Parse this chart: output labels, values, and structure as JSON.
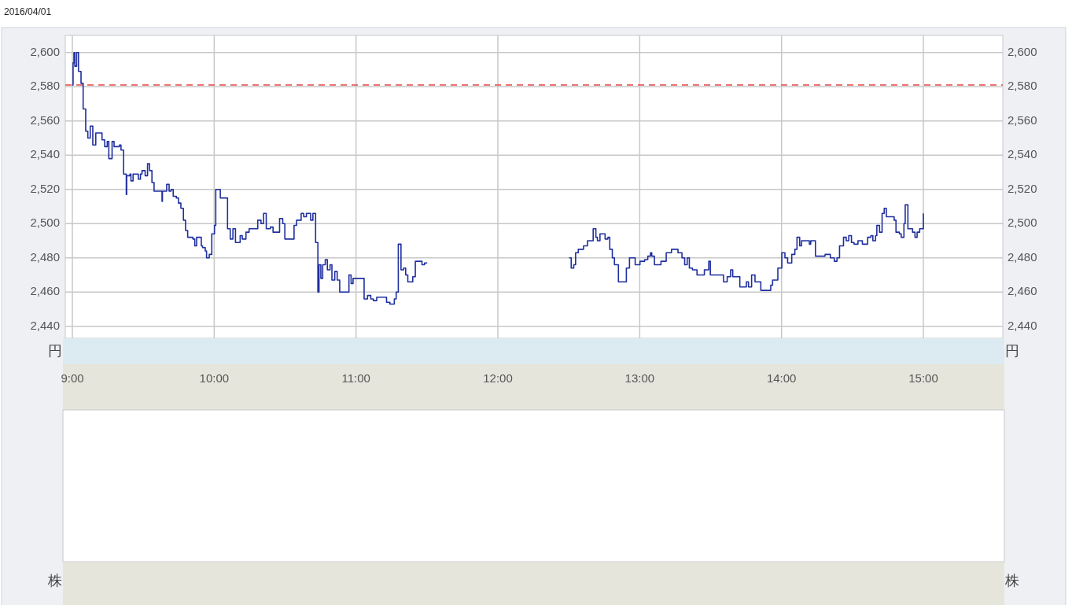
{
  "chart_data": {
    "type": "step",
    "title": "2016/04/01",
    "ylabel": "円",
    "y2label": "円",
    "annotations": [
      "株",
      "株"
    ],
    "line_style": "solid",
    "marker": "none",
    "grid": true,
    "series": [
      {
        "color": "#1f2f9f",
        "x": [
          9.0,
          9.005,
          9.011,
          9.017,
          9.03,
          9.043,
          9.061,
          9.076,
          9.094,
          9.109,
          9.126,
          9.144,
          9.165,
          9.209,
          9.228,
          9.246,
          9.257,
          9.28,
          9.294,
          9.332,
          9.343,
          9.361,
          9.38,
          9.383,
          9.406,
          9.413,
          9.428,
          9.465,
          9.48,
          9.491,
          9.513,
          9.53,
          9.544,
          9.561,
          9.576,
          9.632,
          9.635,
          9.665,
          9.682,
          9.696,
          9.711,
          9.733,
          9.748,
          9.765,
          9.783,
          9.798,
          9.813,
          9.85,
          9.863,
          9.876,
          9.909,
          9.918,
          9.937,
          9.946,
          9.965,
          9.983,
          10.002,
          10.011,
          10.043,
          10.094,
          10.113,
          10.132,
          10.15,
          10.183,
          10.198,
          10.224,
          10.246,
          10.261,
          10.307,
          10.33,
          10.348,
          10.367,
          10.396,
          10.415,
          10.461,
          10.483,
          10.498,
          10.563,
          10.581,
          10.613,
          10.631,
          10.65,
          10.68,
          10.696,
          10.715,
          10.731,
          10.739,
          10.752,
          10.765,
          10.783,
          10.798,
          10.817,
          10.83,
          10.85,
          10.867,
          10.885,
          10.95,
          10.965,
          10.979,
          11.057,
          11.081,
          11.104,
          11.122,
          11.146,
          11.215,
          11.239,
          11.27,
          11.283,
          11.298,
          11.317,
          11.335,
          11.35,
          11.365,
          11.4,
          11.418,
          11.465,
          11.483,
          11.502
        ],
        "values": [
          2581,
          2594,
          2600,
          2592,
          2600,
          2589,
          2582,
          2567,
          2554,
          2550,
          2557,
          2546,
          2553,
          2549,
          2545,
          2548,
          2538,
          2548,
          2545,
          2546,
          2543,
          2529,
          2517,
          2528,
          2529,
          2525,
          2529,
          2526,
          2529,
          2531,
          2528,
          2535,
          2531,
          2524,
          2519,
          2513,
          2519,
          2523,
          2519,
          2520,
          2516,
          2515,
          2512,
          2509,
          2502,
          2496,
          2492,
          2491,
          2487,
          2492,
          2487,
          2486,
          2484,
          2480,
          2482,
          2494,
          2499,
          2520,
          2515,
          2497,
          2491,
          2497,
          2489,
          2493,
          2491,
          2495,
          2497,
          2497,
          2502,
          2500,
          2506,
          2497,
          2498,
          2495,
          2503,
          2500,
          2491,
          2499,
          2502,
          2506,
          2504,
          2506,
          2502,
          2506,
          2489,
          2460,
          2476,
          2468,
          2476,
          2479,
          2473,
          2476,
          2467,
          2472,
          2467,
          2460,
          2470,
          2465,
          2468,
          2456,
          2458,
          2456,
          2455,
          2457,
          2454,
          2453,
          2456,
          2460,
          2488,
          2473,
          2474,
          2470,
          2466,
          2469,
          2478,
          2476,
          2477,
          2477
        ]
      },
      {
        "color": "#1f2f9f",
        "x": [
          12.502,
          12.517,
          12.535,
          12.548,
          12.567,
          12.604,
          12.632,
          12.672,
          12.691,
          12.702,
          12.72,
          12.756,
          12.776,
          12.789,
          12.807,
          12.822,
          12.85,
          12.906,
          12.928,
          12.968,
          13.002,
          13.035,
          13.057,
          13.076,
          13.085,
          13.104,
          13.15,
          13.187,
          13.224,
          13.27,
          13.298,
          13.317,
          13.335,
          13.35,
          13.372,
          13.404,
          13.456,
          13.487,
          13.498,
          13.591,
          13.617,
          13.641,
          13.656,
          13.706,
          13.752,
          13.767,
          13.789,
          13.813,
          13.854,
          13.924,
          13.937,
          13.974,
          14.002,
          14.024,
          14.043,
          14.072,
          14.094,
          14.109,
          14.128,
          14.141,
          14.196,
          14.206,
          14.239,
          14.307,
          14.344,
          14.372,
          14.391,
          14.409,
          14.437,
          14.456,
          14.474,
          14.493,
          14.511,
          14.539,
          14.57,
          14.607,
          14.63,
          14.644,
          14.663,
          14.672,
          14.691,
          14.709,
          14.724,
          14.739,
          14.794,
          14.807,
          14.831,
          14.844,
          14.863,
          14.872,
          14.891,
          14.924,
          14.941,
          14.956,
          14.974,
          15.0
        ],
        "values": [
          2480,
          2474,
          2476,
          2483,
          2485,
          2487,
          2490,
          2497,
          2492,
          2490,
          2494,
          2491,
          2492,
          2485,
          2480,
          2476,
          2466,
          2474,
          2480,
          2476,
          2478,
          2479,
          2481,
          2483,
          2481,
          2476,
          2478,
          2483,
          2485,
          2483,
          2480,
          2476,
          2480,
          2474,
          2473,
          2470,
          2473,
          2478,
          2470,
          2466,
          2469,
          2473,
          2469,
          2463,
          2466,
          2463,
          2470,
          2466,
          2461,
          2464,
          2467,
          2474,
          2483,
          2480,
          2477,
          2482,
          2485,
          2492,
          2487,
          2490,
          2488,
          2490,
          2481,
          2482,
          2480,
          2478,
          2480,
          2487,
          2492,
          2490,
          2493,
          2489,
          2488,
          2490,
          2488,
          2492,
          2493,
          2490,
          2493,
          2499,
          2495,
          2506,
          2509,
          2504,
          2502,
          2495,
          2494,
          2492,
          2500,
          2511,
          2497,
          2495,
          2492,
          2495,
          2497,
          2506
        ]
      }
    ],
    "xlim": [
      8.95,
      15.56
    ],
    "ylim": [
      2433,
      2610
    ],
    "y2lim": [
      2433,
      2610
    ],
    "xticks": [
      {
        "value": 9,
        "label": "9:00"
      },
      {
        "value": 10,
        "label": "10:00"
      },
      {
        "value": 11,
        "label": "11:00"
      },
      {
        "value": 12,
        "label": "12:00"
      },
      {
        "value": 13,
        "label": "13:00"
      },
      {
        "value": 14,
        "label": "14:00"
      },
      {
        "value": 15,
        "label": "15:00"
      }
    ],
    "yticks": [
      {
        "value": 2440,
        "label": "2,440"
      },
      {
        "value": 2460,
        "label": "2,460"
      },
      {
        "value": 2480,
        "label": "2,480"
      },
      {
        "value": 2500,
        "label": "2,500"
      },
      {
        "value": 2520,
        "label": "2,520"
      },
      {
        "value": 2540,
        "label": "2,540"
      },
      {
        "value": 2560,
        "label": "2,560"
      },
      {
        "value": 2580,
        "label": "2,580"
      },
      {
        "value": 2600,
        "label": "2,600"
      }
    ],
    "y2ticks": [
      {
        "value": 2440,
        "label": "2,440"
      },
      {
        "value": 2460,
        "label": "2,460"
      },
      {
        "value": 2480,
        "label": "2,480"
      },
      {
        "value": 2500,
        "label": "2,500"
      },
      {
        "value": 2520,
        "label": "2,520"
      },
      {
        "value": 2540,
        "label": "2,540"
      },
      {
        "value": 2560,
        "label": "2,560"
      },
      {
        "value": 2580,
        "label": "2,580"
      },
      {
        "value": 2600,
        "label": "2,600"
      }
    ],
    "ref_lines": [
      {
        "axis": "y",
        "value": 2581,
        "color": "#e64646",
        "line_style": "dashed"
      }
    ]
  }
}
